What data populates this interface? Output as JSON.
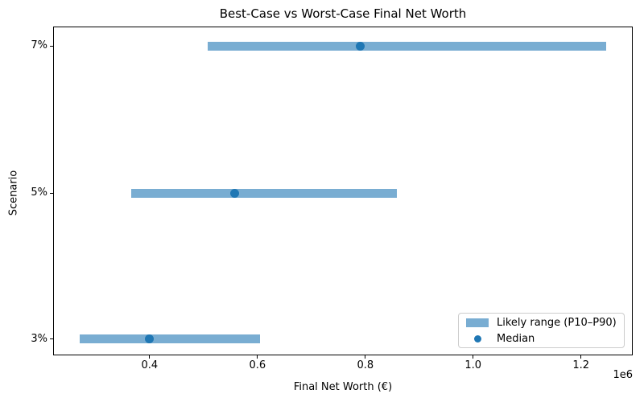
{
  "chart_data": {
    "type": "bar",
    "orientation": "horizontal",
    "title": "Best-Case vs Worst-Case Final Net Worth",
    "xlabel": "Final Net Worth (€)",
    "ylabel": "Scenario",
    "x_scale_note": "1e6",
    "categories": [
      "7%",
      "5%",
      "3%"
    ],
    "series": [
      {
        "name": "Likely range (P10–P90)",
        "type": "range_bar",
        "p10": [
          507000,
          366000,
          270000
        ],
        "p90": [
          1246000,
          858000,
          605000
        ]
      },
      {
        "name": "Median",
        "type": "point",
        "values": [
          790000,
          557000,
          400000
        ]
      }
    ],
    "xlim": [
      221000,
      1296000
    ],
    "xticks": [
      400000,
      600000,
      800000,
      1000000,
      1200000
    ],
    "xtick_labels": [
      "0.4",
      "0.6",
      "0.8",
      "1.0",
      "1.2"
    ],
    "grid": false,
    "legend": {
      "position": "lower right",
      "entries": [
        {
          "marker": "patch",
          "label": "Likely range (P10–P90)"
        },
        {
          "marker": "dot",
          "label": "Median"
        }
      ]
    },
    "colors": {
      "range_bar": "#79ADD2",
      "median": "#1F77B4"
    }
  }
}
